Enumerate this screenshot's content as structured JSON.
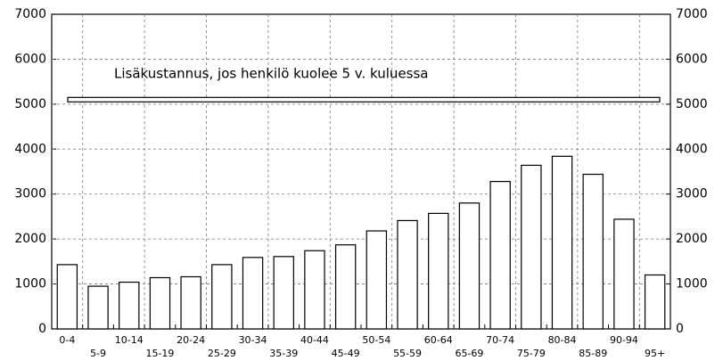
{
  "chart_data": {
    "type": "bar",
    "categories": [
      "0-4",
      "5-9",
      "10-14",
      "15-19",
      "20-24",
      "25-29",
      "30-34",
      "35-39",
      "40-44",
      "45-49",
      "50-54",
      "55-59",
      "60-64",
      "65-69",
      "70-74",
      "75-79",
      "80-84",
      "85-89",
      "90-94",
      "95+"
    ],
    "values": [
      1430,
      950,
      1040,
      1140,
      1160,
      1430,
      1590,
      1610,
      1740,
      1870,
      2180,
      2410,
      2570,
      2800,
      3280,
      3640,
      3840,
      3440,
      2440,
      1200
    ],
    "color": "#ffffff",
    "ylim": [
      0,
      7000
    ],
    "yticks": [
      0,
      1000,
      2000,
      3000,
      4000,
      5000,
      6000,
      7000
    ],
    "y2lim": [
      0,
      7000
    ],
    "y2ticks": [
      0,
      1000,
      2000,
      3000,
      4000,
      5000,
      6000,
      7000
    ],
    "grid": true,
    "reference": {
      "value": 5100,
      "label": "Lisäkustannus, jos henkilö kuolee 5 v. kuluessa"
    }
  }
}
